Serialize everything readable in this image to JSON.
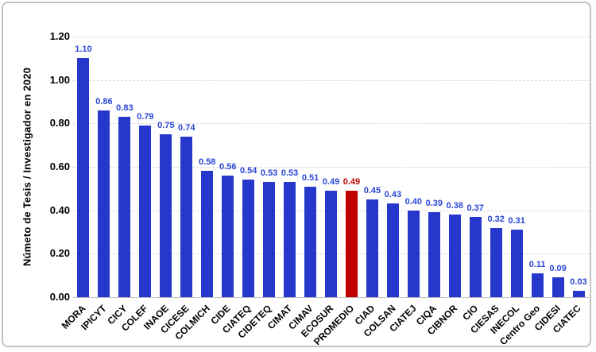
{
  "chart_data": {
    "type": "bar",
    "title": "",
    "xlabel": "",
    "ylabel": "Númeto de Tesis / Investigador en 2020",
    "ylim": [
      0,
      1.2
    ],
    "ytick_step": 0.2,
    "ytick_labels": [
      "0.00",
      "0.20",
      "0.40",
      "0.60",
      "0.80",
      "1.00",
      "1.20"
    ],
    "grid": "horizontal-dashed",
    "legend": "none",
    "categories": [
      "MORA",
      "IPICYT",
      "CICY",
      "COLEF",
      "INAOE",
      "CICESE",
      "COLMICH",
      "CIDE",
      "CIATEQ",
      "CIDETEQ",
      "CIMAT",
      "CIMAV",
      "ECOSUR",
      "PROMEDIO",
      "CIAD",
      "COLSAN",
      "CIATEJ",
      "CIQA",
      "CIBNOR",
      "CIO",
      "CIESAS",
      "INECOL",
      "Centro Geo",
      "CIDESI",
      "CIATEC"
    ],
    "values": [
      1.1,
      0.86,
      0.83,
      0.79,
      0.75,
      0.74,
      0.58,
      0.56,
      0.54,
      0.53,
      0.53,
      0.51,
      0.49,
      0.49,
      0.45,
      0.43,
      0.4,
      0.39,
      0.38,
      0.37,
      0.32,
      0.31,
      0.11,
      0.09,
      0.03
    ],
    "value_labels": [
      "1.10",
      "0.86",
      "0.83",
      "0.79",
      "0.75",
      "0.74",
      "0.58",
      "0.56",
      "0.54",
      "0.53",
      "0.53",
      "0.51",
      "0.49",
      "0.49",
      "0.45",
      "0.43",
      "0.40",
      "0.39",
      "0.38",
      "0.37",
      "0.32",
      "0.31",
      "0.11",
      "0.09",
      "0.03"
    ],
    "highlight_category": "PROMEDIO",
    "highlight_index": 13,
    "bar_color": "#2637cc",
    "highlight_color": "#c00000",
    "value_label_color": "#2a46d6",
    "highlight_value_label_color": "#c00000",
    "gridline_color": "#d9d9d9",
    "axis_line_color": "#bfbfbf",
    "text_color": "#000000"
  }
}
